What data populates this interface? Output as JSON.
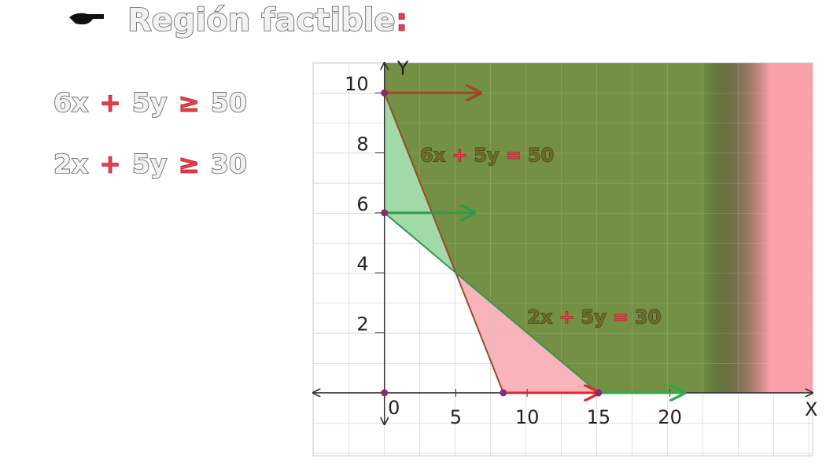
{
  "chart_data": {
    "type": "lines",
    "title": [
      "Región factible",
      ":"
    ],
    "constraints": [
      [
        "6x",
        "+",
        "5y",
        "≥",
        "50"
      ],
      [
        "2x",
        "+",
        "5y",
        "≥",
        "30"
      ]
    ],
    "line_labels": [
      {
        "text": [
          "6x",
          "+",
          "5y",
          "=",
          "50"
        ],
        "x": 2.5,
        "y": 7.9
      },
      {
        "text": [
          "2x",
          "+",
          "5y",
          "=",
          "30"
        ],
        "x": 10,
        "y": 2.5
      }
    ],
    "xlabel": "X",
    "ylabel": "Y",
    "xlim": [
      -5,
      30
    ],
    "ylim": [
      -2.1,
      11
    ],
    "xticks": [
      0,
      5,
      10,
      15,
      20
    ],
    "yticks": [
      2,
      4,
      6,
      8,
      10
    ],
    "regions": [
      {
        "x": [
          0,
          0,
          5,
          15,
          30,
          30
        ],
        "y": [
          11,
          10,
          4,
          0,
          0,
          11
        ],
        "color": "#6b8a3a"
      },
      {
        "x": [
          0,
          0,
          5
        ],
        "y": [
          10,
          6,
          4
        ],
        "color": "#8fd49a"
      },
      {
        "x": [
          5,
          8.33,
          15
        ],
        "y": [
          4,
          0,
          0
        ],
        "color": "#f7a7ae"
      }
    ],
    "series": [
      {
        "x": [
          0,
          8.33
        ],
        "y": [
          10,
          0
        ],
        "color": "#9b4a26"
      },
      {
        "x": [
          0,
          15
        ],
        "y": [
          6,
          0
        ],
        "color": "#2f9a4a"
      }
    ],
    "arrows": [
      {
        "x": [
          0,
          6.7
        ],
        "y": [
          10,
          10
        ],
        "color": "#9b4a26"
      },
      {
        "x": [
          0,
          6.3
        ],
        "y": [
          6,
          6
        ],
        "color": "#2f9a4a"
      },
      {
        "x": [
          8.33,
          15
        ],
        "y": [
          0,
          0
        ],
        "color": "#e02830"
      },
      {
        "x": [
          15,
          21
        ],
        "y": [
          0,
          0
        ],
        "color": "#2faa4a"
      }
    ],
    "points": {
      "x": [
        0,
        0,
        0,
        8.33,
        15
      ],
      "y": [
        10,
        6,
        0,
        0,
        0
      ],
      "color": "#8a2a6a"
    }
  }
}
